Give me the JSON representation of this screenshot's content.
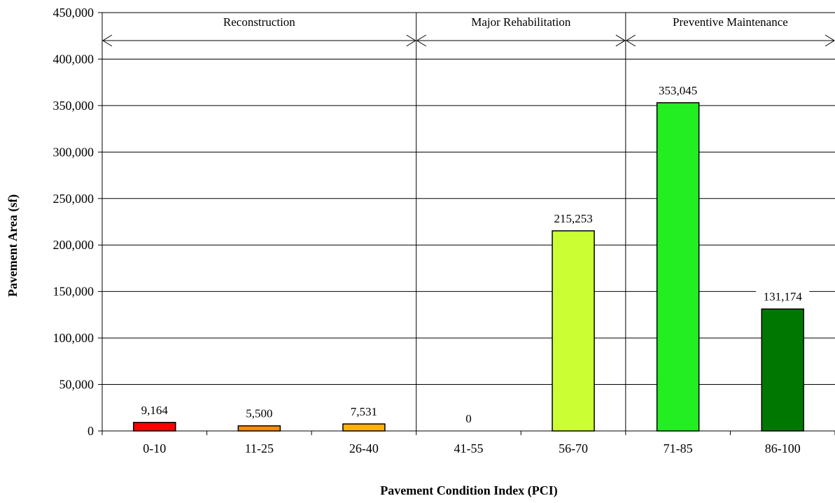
{
  "chart_data": {
    "type": "bar",
    "title": "",
    "xlabel": "Pavement Condition Index (PCI)",
    "ylabel": "Pavement Area (sf)",
    "categories": [
      "0-10",
      "11-25",
      "26-40",
      "41-55",
      "56-70",
      "71-85",
      "86-100"
    ],
    "values": [
      9164,
      5500,
      7531,
      0,
      215253,
      353045,
      131174
    ],
    "data_labels": [
      "9,164",
      "5,500",
      "7,531",
      "0",
      "215,253",
      "353,045",
      "131,174"
    ],
    "bar_colors": [
      "#ff0000",
      "#ff8c00",
      "#ffb300",
      "#ffd700",
      "#ccff33",
      "#22ee22",
      "#007700"
    ],
    "ylim": [
      0,
      450000
    ],
    "yticks": [
      0,
      50000,
      100000,
      150000,
      200000,
      250000,
      300000,
      350000,
      400000,
      450000
    ],
    "ytick_labels": [
      "0",
      "50,000",
      "100,000",
      "150,000",
      "200,000",
      "250,000",
      "300,000",
      "350,000",
      "400,000",
      "450,000"
    ],
    "grid": true,
    "legend": "none",
    "zones": [
      {
        "label": "Reconstruction",
        "start_category": 0,
        "end_category": 2
      },
      {
        "label": "Major Rehabilitation",
        "start_category": 3,
        "end_category": 4
      },
      {
        "label": "Preventive Maintenance",
        "start_category": 5,
        "end_category": 6
      }
    ]
  }
}
